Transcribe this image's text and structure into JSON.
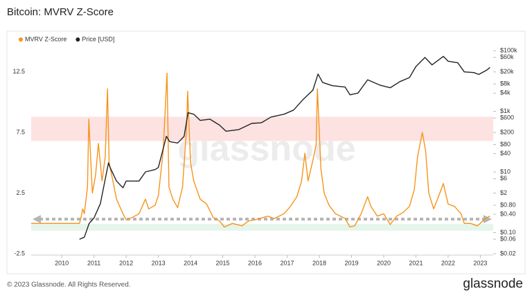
{
  "chart_data": {
    "type": "line",
    "title": "Bitcoin: MVRV Z-Score",
    "watermark": "glassnode",
    "xlim": [
      2009.05,
      2023.4
    ],
    "xticks": [
      2010,
      2011,
      2012,
      2013,
      2014,
      2015,
      2016,
      2017,
      2018,
      2019,
      2020,
      2021,
      2022,
      2023
    ],
    "ylim": [
      -2.5,
      15
    ],
    "yticks": [
      -2.5,
      2.5,
      7.5,
      12.5
    ],
    "y2lim": [
      0.02,
      200000
    ],
    "y2log": true,
    "y2ticks": [
      {
        "value": 100000,
        "label": "$100k"
      },
      {
        "value": 60000,
        "label": "$60k"
      },
      {
        "value": 20000,
        "label": "$20k"
      },
      {
        "value": 8000,
        "label": "$8k"
      },
      {
        "value": 4000,
        "label": "$4k"
      },
      {
        "value": 1000,
        "label": "$1k"
      },
      {
        "value": 600,
        "label": "$600"
      },
      {
        "value": 200,
        "label": "$200"
      },
      {
        "value": 80,
        "label": "$80"
      },
      {
        "value": 40,
        "label": "$40"
      },
      {
        "value": 10,
        "label": "$10"
      },
      {
        "value": 6,
        "label": "$6"
      },
      {
        "value": 2,
        "label": "$2"
      },
      {
        "value": 0.8,
        "label": "$0.80"
      },
      {
        "value": 0.4,
        "label": "$0.40"
      },
      {
        "value": 0.1,
        "label": "$0.10"
      },
      {
        "value": 0.06,
        "label": "$0.06"
      },
      {
        "value": 0.02,
        "label": "$0.02"
      }
    ],
    "bands": [
      {
        "from": 6.8,
        "to": 8.8,
        "color": "#fde2e2"
      },
      {
        "from": -0.6,
        "to": -0.05,
        "color": "#e5f5ea"
      }
    ],
    "reference_line": {
      "value": 0.35,
      "color": "#b5b5b5"
    },
    "series": [
      {
        "name": "MVRV Z-Score",
        "color": "#f7931a",
        "x": [
          2009.05,
          2010.55,
          2010.6,
          2010.65,
          2010.7,
          2010.8,
          2010.84,
          2010.95,
          2011.05,
          2011.14,
          2011.25,
          2011.35,
          2011.42,
          2011.47,
          2011.55,
          2011.7,
          2011.9,
          2012.0,
          2012.2,
          2012.4,
          2012.6,
          2012.7,
          2012.9,
          2013.0,
          2013.15,
          2013.27,
          2013.33,
          2013.45,
          2013.6,
          2013.75,
          2013.88,
          2013.91,
          2014.0,
          2014.1,
          2014.3,
          2014.5,
          2014.7,
          2014.9,
          2015.05,
          2015.3,
          2015.6,
          2015.8,
          2016.0,
          2016.4,
          2016.6,
          2016.9,
          2017.1,
          2017.3,
          2017.45,
          2017.55,
          2017.65,
          2017.8,
          2017.9,
          2017.94,
          2018.05,
          2018.15,
          2018.3,
          2018.5,
          2018.8,
          2018.95,
          2019.1,
          2019.3,
          2019.5,
          2019.6,
          2019.8,
          2020.0,
          2020.2,
          2020.4,
          2020.6,
          2020.8,
          2020.95,
          2021.05,
          2021.2,
          2021.3,
          2021.4,
          2021.55,
          2021.7,
          2021.85,
          2022.0,
          2022.2,
          2022.4,
          2022.5,
          2022.7,
          2022.9,
          2023.0,
          2023.15,
          2023.3
        ],
        "values": [
          0,
          0,
          0.5,
          1.2,
          0.8,
          3.0,
          8.6,
          2.5,
          4.0,
          6.6,
          3.5,
          5.5,
          11.1,
          5.0,
          4.0,
          2.0,
          0.8,
          0.3,
          0.5,
          0.8,
          2.0,
          1.2,
          1.5,
          2.3,
          6.0,
          12.4,
          3.0,
          2.0,
          1.3,
          3.0,
          8.0,
          10.9,
          5.0,
          3.5,
          2.0,
          1.6,
          0.5,
          0.2,
          -0.3,
          0,
          -0.2,
          0.2,
          0.3,
          0.6,
          0.4,
          0.8,
          1.4,
          2.2,
          3.5,
          5.8,
          3.5,
          5.2,
          6.5,
          11.1,
          4.5,
          2.5,
          1.5,
          0.8,
          0.4,
          -0.3,
          -0.2,
          0.8,
          2.2,
          1.4,
          0.6,
          0.8,
          -0.1,
          0.6,
          0.9,
          1.4,
          2.8,
          5.5,
          7.5,
          6.0,
          2.5,
          1.2,
          2.2,
          3.3,
          1.6,
          1.4,
          0.8,
          0.0,
          0.0,
          -0.2,
          0.0,
          0.4,
          0.6
        ]
      },
      {
        "name": "Price [USD]",
        "color": "#222222",
        "axis": "y2",
        "x": [
          2010.55,
          2010.7,
          2010.85,
          2011.0,
          2011.2,
          2011.45,
          2011.5,
          2011.7,
          2011.9,
          2012.0,
          2012.4,
          2012.6,
          2012.9,
          2013.0,
          2013.25,
          2013.35,
          2013.6,
          2013.8,
          2013.92,
          2014.1,
          2014.3,
          2014.6,
          2014.9,
          2015.1,
          2015.5,
          2015.9,
          2016.2,
          2016.5,
          2016.9,
          2017.2,
          2017.5,
          2017.8,
          2017.96,
          2018.1,
          2018.4,
          2018.8,
          2018.95,
          2019.2,
          2019.5,
          2019.9,
          2020.2,
          2020.5,
          2020.8,
          2021.0,
          2021.28,
          2021.5,
          2021.85,
          2022.0,
          2022.3,
          2022.5,
          2022.8,
          2022.95,
          2023.2,
          2023.3
        ],
        "values": [
          0.06,
          0.07,
          0.2,
          0.3,
          0.9,
          20,
          14,
          5,
          3,
          5,
          5,
          10,
          12,
          14,
          150,
          100,
          90,
          150,
          900,
          800,
          500,
          550,
          350,
          220,
          250,
          400,
          420,
          650,
          800,
          1100,
          2500,
          5000,
          17000,
          9000,
          7000,
          6300,
          3500,
          4000,
          11000,
          7200,
          6000,
          9500,
          13000,
          30000,
          60000,
          34000,
          65000,
          45000,
          40000,
          20000,
          19000,
          16500,
          23000,
          28000
        ]
      }
    ]
  },
  "footer": {
    "copyright": "© 2023 Glassnode. All Rights Reserved.",
    "logo": "glassnode"
  }
}
